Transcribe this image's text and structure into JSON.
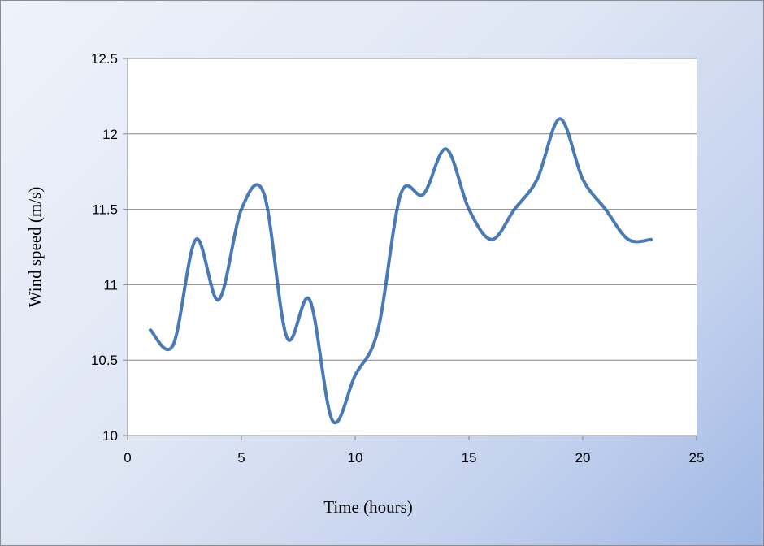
{
  "chart_data": {
    "type": "line",
    "title": "",
    "xlabel": "Time (hours)",
    "ylabel": "Wind speed (m/s)",
    "xlim": [
      0,
      25
    ],
    "ylim": [
      10,
      12.5
    ],
    "x_ticks": [
      "0",
      "5",
      "10",
      "15",
      "20",
      "25"
    ],
    "y_ticks": [
      "10",
      "10.5",
      "11",
      "11.5",
      "12",
      "12.5"
    ],
    "grid": "horizontal",
    "smooth": true,
    "line_color": "#4a7ab5",
    "series": [
      {
        "x": [
          1,
          2,
          3,
          4,
          5,
          6,
          7,
          8,
          9,
          10,
          11,
          12,
          13,
          14,
          15,
          16,
          17,
          18,
          19,
          20,
          21,
          22,
          23
        ],
        "values": [
          10.7,
          10.6,
          11.3,
          10.9,
          11.5,
          11.6,
          10.65,
          10.9,
          10.1,
          10.4,
          10.7,
          11.6,
          11.6,
          11.9,
          11.5,
          11.3,
          11.5,
          11.7,
          12.1,
          11.7,
          11.5,
          11.3,
          11.3
        ]
      }
    ]
  }
}
